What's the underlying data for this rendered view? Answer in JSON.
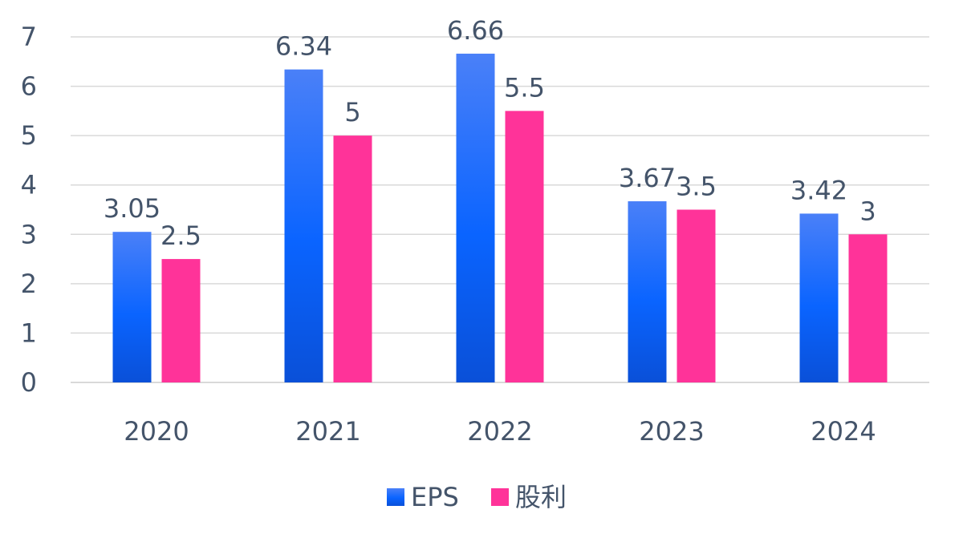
{
  "chart_data": {
    "type": "bar",
    "categories": [
      "2020",
      "2021",
      "2022",
      "2023",
      "2024"
    ],
    "series": [
      {
        "name": "EPS",
        "values": [
          3.05,
          6.34,
          6.66,
          3.67,
          3.42
        ],
        "labels": [
          "3.05",
          "6.34",
          "6.66",
          "3.67",
          "3.42"
        ],
        "color": "#0a5cf0",
        "color_light": "#4a80f8"
      },
      {
        "name": "股利",
        "values": [
          2.5,
          5,
          5.5,
          3.5,
          3
        ],
        "labels": [
          "2.5",
          "5",
          "5.5",
          "3.5",
          "3"
        ],
        "color": "#ff3399"
      }
    ],
    "yticks": [
      "0",
      "1",
      "2",
      "3",
      "4",
      "5",
      "6",
      "7"
    ],
    "ylim": [
      0,
      7
    ],
    "grid": true,
    "legend": "bottom",
    "title": "",
    "xlabel": "",
    "ylabel": ""
  }
}
